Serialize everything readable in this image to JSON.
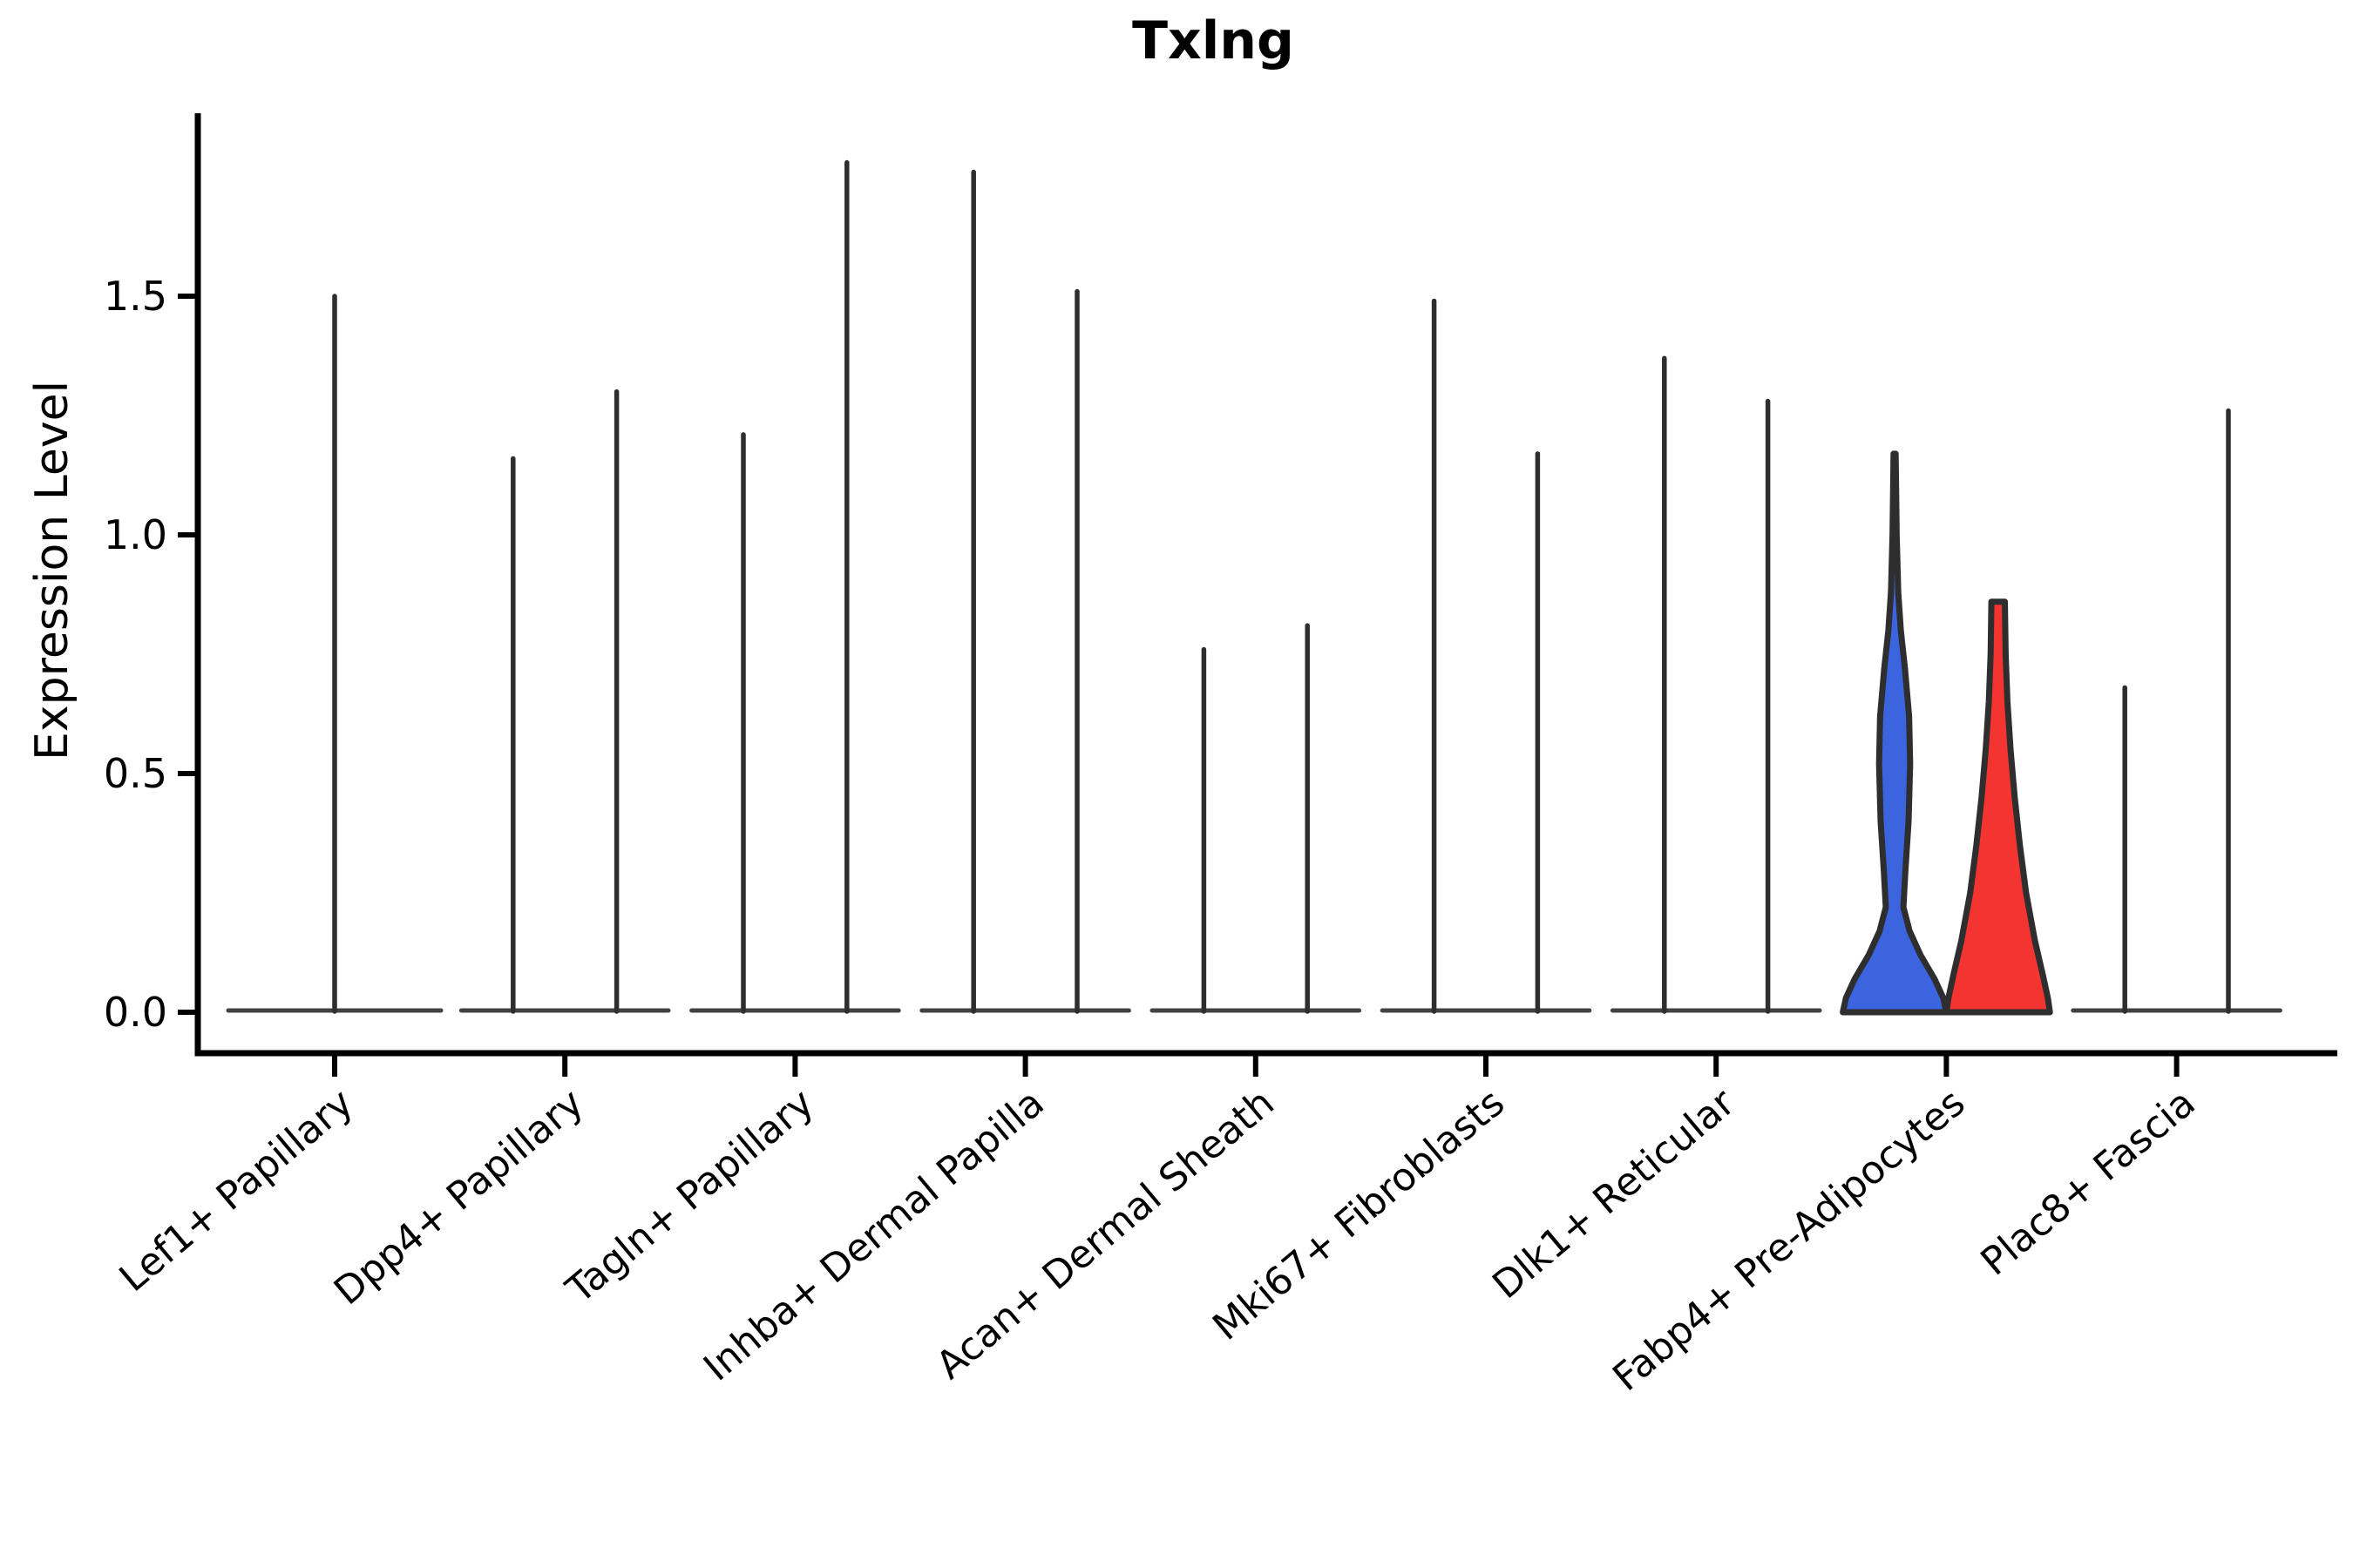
{
  "chart_data": {
    "type": "violin",
    "title": "Txlng",
    "xlabel": "",
    "ylabel": "Expression Level",
    "y_ticks": [
      "0.0",
      "0.5",
      "1.0",
      "1.5"
    ],
    "y_tick_values": [
      0.0,
      0.5,
      1.0,
      1.5
    ],
    "ylim": [
      -0.09,
      1.88
    ],
    "grid": false,
    "legend": null,
    "palette": {
      "highlight_blue": "#3B64DE",
      "highlight_red": "#F43430",
      "violin_outline": "#2E2E2E",
      "axis_color": "#000000"
    },
    "categories": [
      {
        "label": "Lef1+ Papillary",
        "violins": [
          {
            "group": "single",
            "max": 1.5,
            "fill": "none"
          }
        ]
      },
      {
        "label": "Dpp4+ Papillary",
        "violins": [
          {
            "group": "left",
            "max": 1.16,
            "fill": "none"
          },
          {
            "group": "right",
            "max": 1.3,
            "fill": "none"
          }
        ]
      },
      {
        "label": "Tagln+ Papillary",
        "violins": [
          {
            "group": "left",
            "max": 1.21,
            "fill": "none"
          },
          {
            "group": "right",
            "max": 1.78,
            "fill": "none"
          }
        ]
      },
      {
        "label": "Inhba+ Dermal Papilla",
        "violins": [
          {
            "group": "left",
            "max": 1.76,
            "fill": "none"
          },
          {
            "group": "right",
            "max": 1.51,
            "fill": "none"
          }
        ]
      },
      {
        "label": "Acan+ Dermal Sheath",
        "violins": [
          {
            "group": "left",
            "max": 0.76,
            "fill": "none"
          },
          {
            "group": "right",
            "max": 0.81,
            "fill": "none"
          }
        ]
      },
      {
        "label": "Mki67+ Fibroblasts",
        "violins": [
          {
            "group": "left",
            "max": 1.49,
            "fill": "none"
          },
          {
            "group": "right",
            "max": 1.17,
            "fill": "none"
          }
        ]
      },
      {
        "label": "Dlk1+ Reticular",
        "violins": [
          {
            "group": "left",
            "max": 1.37,
            "fill": "none"
          },
          {
            "group": "right",
            "max": 1.28,
            "fill": "none"
          }
        ]
      },
      {
        "label": "Fabp4+ Pre-Adipocytes",
        "violins": [
          {
            "group": "left",
            "max": 1.17,
            "fill": "highlight_blue",
            "flat_top": false,
            "profile": [
              [
                0,
                1.0
              ],
              [
                0.03,
                0.94
              ],
              [
                0.07,
                0.77
              ],
              [
                0.12,
                0.5
              ],
              [
                0.17,
                0.29
              ],
              [
                0.22,
                0.17
              ],
              [
                0.3,
                0.21
              ],
              [
                0.4,
                0.27
              ],
              [
                0.52,
                0.3
              ],
              [
                0.62,
                0.28
              ],
              [
                0.72,
                0.2
              ],
              [
                0.8,
                0.12
              ],
              [
                0.88,
                0.07
              ],
              [
                1.0,
                0.04
              ],
              [
                1.17,
                0.02
              ]
            ]
          },
          {
            "group": "right",
            "max": 0.86,
            "fill": "highlight_red",
            "flat_top": true,
            "profile": [
              [
                0,
                1.0
              ],
              [
                0.03,
                0.96
              ],
              [
                0.08,
                0.86
              ],
              [
                0.15,
                0.71
              ],
              [
                0.25,
                0.54
              ],
              [
                0.35,
                0.42
              ],
              [
                0.45,
                0.32
              ],
              [
                0.55,
                0.24
              ],
              [
                0.65,
                0.18
              ],
              [
                0.75,
                0.145
              ],
              [
                0.86,
                0.13
              ]
            ]
          }
        ]
      },
      {
        "label": "Plac8+ Fascia",
        "violins": [
          {
            "group": "left",
            "max": 0.68,
            "fill": "none"
          },
          {
            "group": "right",
            "max": 1.26,
            "fill": "none"
          }
        ]
      }
    ]
  }
}
